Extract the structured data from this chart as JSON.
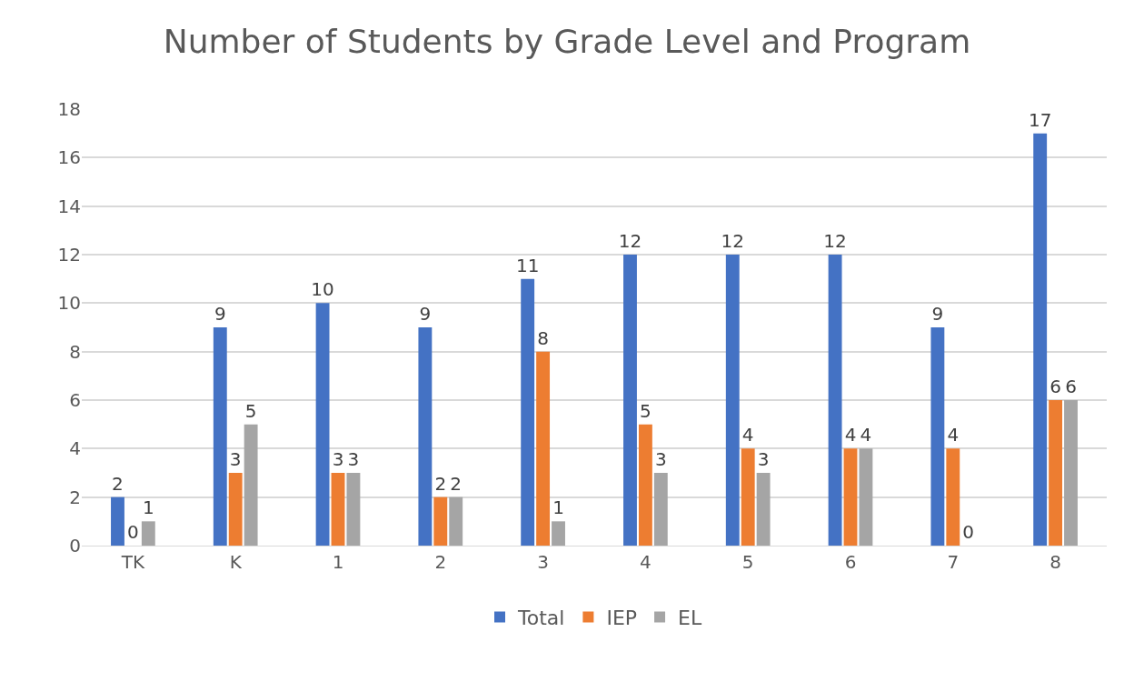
{
  "chart_data": {
    "type": "bar",
    "title": "Number of Students by Grade Level and Program",
    "categories": [
      "TK",
      "K",
      "1",
      "2",
      "3",
      "4",
      "5",
      "6",
      "7",
      "8"
    ],
    "series": [
      {
        "name": "Total",
        "color": "#4472c4",
        "values": [
          2,
          9,
          10,
          9,
          11,
          12,
          12,
          12,
          9,
          17
        ]
      },
      {
        "name": "IEP",
        "color": "#ed7d31",
        "values": [
          0,
          3,
          3,
          2,
          8,
          5,
          4,
          4,
          4,
          6
        ]
      },
      {
        "name": "EL",
        "color": "#a5a5a5",
        "values": [
          1,
          5,
          3,
          2,
          1,
          3,
          3,
          4,
          0,
          6
        ]
      }
    ],
    "ylim": [
      0,
      18
    ],
    "yticks": [
      0,
      2,
      4,
      6,
      8,
      10,
      12,
      14,
      16,
      18
    ],
    "grid": "y",
    "legend": "bottom",
    "data_labels": true
  }
}
